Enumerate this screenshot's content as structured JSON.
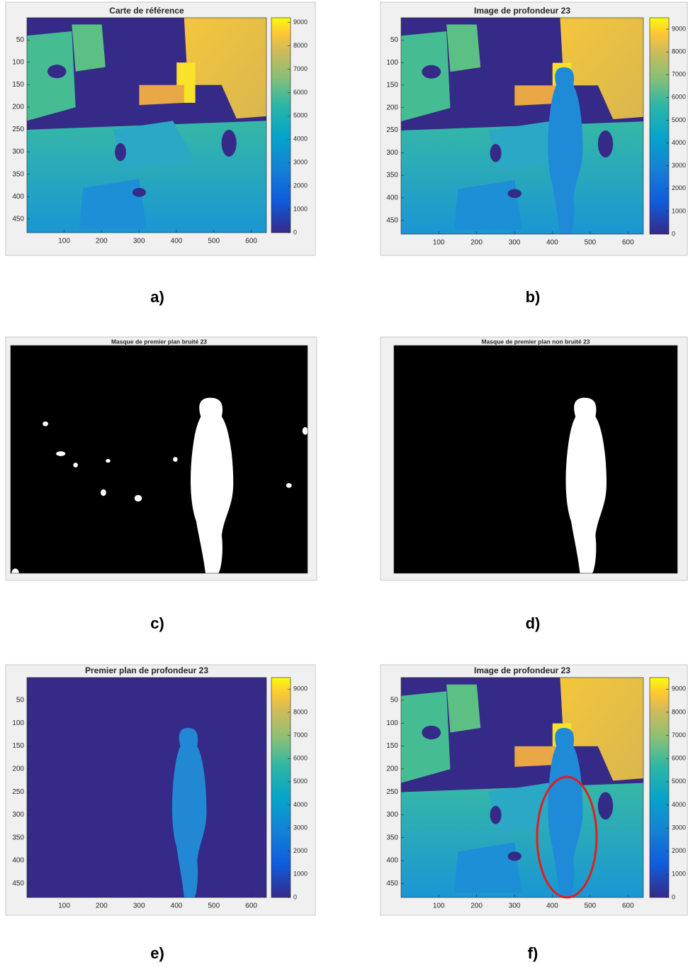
{
  "panels": [
    {
      "title": "Carte de référence",
      "caption": "a)",
      "xlim": [
        0.5,
        640.5
      ],
      "ylim": [
        0.5,
        480.5
      ],
      "xticks": [
        100,
        200,
        300,
        400,
        500,
        600
      ],
      "yticks": [
        50,
        100,
        150,
        200,
        250,
        300,
        350,
        400,
        450
      ],
      "clim": [
        0,
        9200
      ],
      "colorbar_ticks": [
        0,
        1000,
        2000,
        3000,
        4000,
        5000,
        6000,
        7000,
        8000,
        9000
      ]
    },
    {
      "title": "Image de profondeur 23",
      "caption": "b)",
      "xlim": [
        0.5,
        640.5
      ],
      "ylim": [
        0.5,
        480.5
      ],
      "xticks": [
        100,
        200,
        300,
        400,
        500,
        600
      ],
      "yticks": [
        50,
        100,
        150,
        200,
        250,
        300,
        350,
        400,
        450
      ],
      "clim": [
        0,
        9500
      ],
      "colorbar_ticks": [
        0,
        1000,
        2000,
        3000,
        4000,
        5000,
        6000,
        7000,
        8000,
        9000
      ]
    },
    {
      "title": "Masque de premier plan bruité 23",
      "caption": "c)"
    },
    {
      "title": "Masque de premier plan non bruité 23",
      "caption": "d)"
    },
    {
      "title": "Premier plan de profondeur 23",
      "caption": "e)",
      "xlim": [
        0.5,
        640.5
      ],
      "ylim": [
        0.5,
        480.5
      ],
      "xticks": [
        100,
        200,
        300,
        400,
        500,
        600
      ],
      "yticks": [
        50,
        100,
        150,
        200,
        250,
        300,
        350,
        400,
        450
      ],
      "clim": [
        0,
        9500
      ],
      "colorbar_ticks": [
        0,
        1000,
        2000,
        3000,
        4000,
        5000,
        6000,
        7000,
        8000,
        9000
      ]
    },
    {
      "title": "Image de profondeur 23",
      "caption": "f)",
      "xlim": [
        0.5,
        640.5
      ],
      "ylim": [
        0.5,
        480.5
      ],
      "xticks": [
        100,
        200,
        300,
        400,
        500,
        600
      ],
      "yticks": [
        50,
        100,
        150,
        200,
        250,
        300,
        350,
        400,
        450
      ],
      "clim": [
        0,
        9500
      ],
      "colorbar_ticks": [
        0,
        1000,
        2000,
        3000,
        4000,
        5000,
        6000,
        7000,
        8000,
        9000
      ]
    }
  ]
}
